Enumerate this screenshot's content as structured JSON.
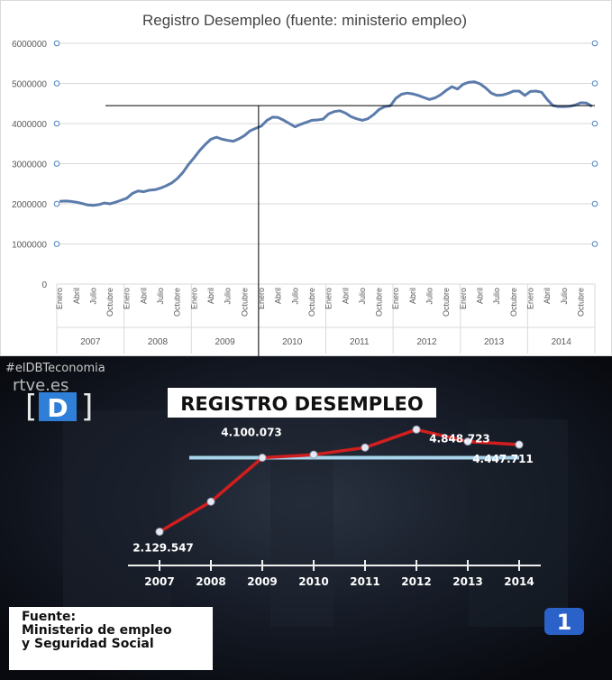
{
  "chart_data": [
    {
      "type": "line",
      "title": "Registro Desempleo (fuente: ministerio empleo)",
      "ylim": [
        0,
        6000000
      ],
      "y_ticks": [
        "0",
        "1000000",
        "2000000",
        "3000000",
        "4000000",
        "5000000",
        "6000000"
      ],
      "grid": true,
      "years": [
        "2007",
        "2008",
        "2009",
        "2010",
        "2011",
        "2012",
        "2013",
        "2014"
      ],
      "month_labels": [
        "Enero",
        "Abril",
        "Julio",
        "Octubre"
      ],
      "series": [
        {
          "values": [
            2060000,
            2070000,
            2060000,
            2040000,
            2010000,
            1970000,
            1960000,
            1980000,
            2020000,
            2000000,
            2040000,
            2090000,
            2140000,
            2260000,
            2320000,
            2300000,
            2340000,
            2350000,
            2390000,
            2450000,
            2520000,
            2630000,
            2780000,
            2980000,
            3150000,
            3330000,
            3480000,
            3610000,
            3660000,
            3610000,
            3580000,
            3560000,
            3620000,
            3700000,
            3820000,
            3880000,
            3940000,
            4080000,
            4160000,
            4150000,
            4080000,
            4000000,
            3920000,
            3980000,
            4030000,
            4080000,
            4090000,
            4110000,
            4240000,
            4300000,
            4320000,
            4260000,
            4170000,
            4120000,
            4080000,
            4120000,
            4220000,
            4350000,
            4420000,
            4440000,
            4630000,
            4730000,
            4760000,
            4740000,
            4700000,
            4650000,
            4600000,
            4640000,
            4720000,
            4830000,
            4920000,
            4860000,
            4980000,
            5030000,
            5040000,
            4990000,
            4890000,
            4760000,
            4700000,
            4710000,
            4750000,
            4810000,
            4810000,
            4700000,
            4800000,
            4810000,
            4780000,
            4600000,
            4450000,
            4420000,
            4420000,
            4430000,
            4460000,
            4520000,
            4510000,
            4430000
          ]
        }
      ],
      "reference_line": 4447711,
      "marker_line_year": "2010"
    },
    {
      "type": "line",
      "title": "REGISTRO DESEMPLEO",
      "x": [
        "2007",
        "2008",
        "2009",
        "2010",
        "2011",
        "2012",
        "2013",
        "2014"
      ],
      "series": [
        {
          "values": [
            2129547,
            2930000,
            4100073,
            4180000,
            4370000,
            4848723,
            4530000,
            4447711
          ]
        }
      ],
      "point_labels": [
        {
          "index": 0,
          "text": "2.129.547"
        },
        {
          "index": 2,
          "text": "4.100.073"
        },
        {
          "index": 5,
          "text": "4.848.723"
        },
        {
          "index": 7,
          "text": "4.447.711"
        }
      ],
      "reference_value": 4100073
    }
  ],
  "broadcast": {
    "hashtag": "#elDBTeconomia",
    "channel_logo": "rtve.es",
    "program_logo": "D",
    "source_lines": [
      "Fuente:",
      "Ministerio de empleo",
      "y Seguridad Social"
    ],
    "channel_number": "1"
  },
  "colors": {
    "excel_line": "#5b7bab",
    "tv_line": "#d11e1e",
    "tv_reference": "#a8d4ec",
    "tv_background": "#0c0f15"
  }
}
